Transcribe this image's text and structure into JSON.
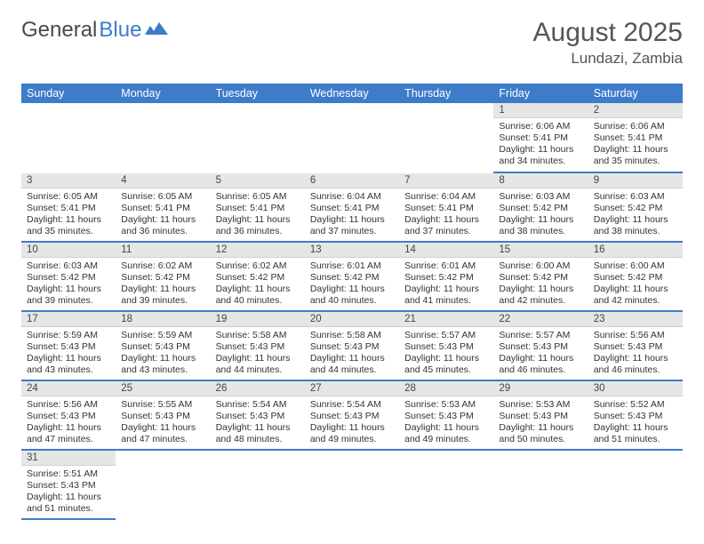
{
  "brand": {
    "part1": "General",
    "part2": "Blue"
  },
  "title": {
    "month": "August 2025",
    "location": "Lundazi, Zambia"
  },
  "colors": {
    "header_bg": "#3d7cc9",
    "header_fg": "#ffffff",
    "daynum_bg": "#e6e6e6",
    "row_border": "#3d7cc9",
    "text": "#333333"
  },
  "weekdays": [
    "Sunday",
    "Monday",
    "Tuesday",
    "Wednesday",
    "Thursday",
    "Friday",
    "Saturday"
  ],
  "weeks": [
    [
      {
        "n": "",
        "sr": "",
        "ss": "",
        "dl": ""
      },
      {
        "n": "",
        "sr": "",
        "ss": "",
        "dl": ""
      },
      {
        "n": "",
        "sr": "",
        "ss": "",
        "dl": ""
      },
      {
        "n": "",
        "sr": "",
        "ss": "",
        "dl": ""
      },
      {
        "n": "",
        "sr": "",
        "ss": "",
        "dl": ""
      },
      {
        "n": "1",
        "sr": "Sunrise: 6:06 AM",
        "ss": "Sunset: 5:41 PM",
        "dl": "Daylight: 11 hours and 34 minutes."
      },
      {
        "n": "2",
        "sr": "Sunrise: 6:06 AM",
        "ss": "Sunset: 5:41 PM",
        "dl": "Daylight: 11 hours and 35 minutes."
      }
    ],
    [
      {
        "n": "3",
        "sr": "Sunrise: 6:05 AM",
        "ss": "Sunset: 5:41 PM",
        "dl": "Daylight: 11 hours and 35 minutes."
      },
      {
        "n": "4",
        "sr": "Sunrise: 6:05 AM",
        "ss": "Sunset: 5:41 PM",
        "dl": "Daylight: 11 hours and 36 minutes."
      },
      {
        "n": "5",
        "sr": "Sunrise: 6:05 AM",
        "ss": "Sunset: 5:41 PM",
        "dl": "Daylight: 11 hours and 36 minutes."
      },
      {
        "n": "6",
        "sr": "Sunrise: 6:04 AM",
        "ss": "Sunset: 5:41 PM",
        "dl": "Daylight: 11 hours and 37 minutes."
      },
      {
        "n": "7",
        "sr": "Sunrise: 6:04 AM",
        "ss": "Sunset: 5:41 PM",
        "dl": "Daylight: 11 hours and 37 minutes."
      },
      {
        "n": "8",
        "sr": "Sunrise: 6:03 AM",
        "ss": "Sunset: 5:42 PM",
        "dl": "Daylight: 11 hours and 38 minutes."
      },
      {
        "n": "9",
        "sr": "Sunrise: 6:03 AM",
        "ss": "Sunset: 5:42 PM",
        "dl": "Daylight: 11 hours and 38 minutes."
      }
    ],
    [
      {
        "n": "10",
        "sr": "Sunrise: 6:03 AM",
        "ss": "Sunset: 5:42 PM",
        "dl": "Daylight: 11 hours and 39 minutes."
      },
      {
        "n": "11",
        "sr": "Sunrise: 6:02 AM",
        "ss": "Sunset: 5:42 PM",
        "dl": "Daylight: 11 hours and 39 minutes."
      },
      {
        "n": "12",
        "sr": "Sunrise: 6:02 AM",
        "ss": "Sunset: 5:42 PM",
        "dl": "Daylight: 11 hours and 40 minutes."
      },
      {
        "n": "13",
        "sr": "Sunrise: 6:01 AM",
        "ss": "Sunset: 5:42 PM",
        "dl": "Daylight: 11 hours and 40 minutes."
      },
      {
        "n": "14",
        "sr": "Sunrise: 6:01 AM",
        "ss": "Sunset: 5:42 PM",
        "dl": "Daylight: 11 hours and 41 minutes."
      },
      {
        "n": "15",
        "sr": "Sunrise: 6:00 AM",
        "ss": "Sunset: 5:42 PM",
        "dl": "Daylight: 11 hours and 42 minutes."
      },
      {
        "n": "16",
        "sr": "Sunrise: 6:00 AM",
        "ss": "Sunset: 5:42 PM",
        "dl": "Daylight: 11 hours and 42 minutes."
      }
    ],
    [
      {
        "n": "17",
        "sr": "Sunrise: 5:59 AM",
        "ss": "Sunset: 5:43 PM",
        "dl": "Daylight: 11 hours and 43 minutes."
      },
      {
        "n": "18",
        "sr": "Sunrise: 5:59 AM",
        "ss": "Sunset: 5:43 PM",
        "dl": "Daylight: 11 hours and 43 minutes."
      },
      {
        "n": "19",
        "sr": "Sunrise: 5:58 AM",
        "ss": "Sunset: 5:43 PM",
        "dl": "Daylight: 11 hours and 44 minutes."
      },
      {
        "n": "20",
        "sr": "Sunrise: 5:58 AM",
        "ss": "Sunset: 5:43 PM",
        "dl": "Daylight: 11 hours and 44 minutes."
      },
      {
        "n": "21",
        "sr": "Sunrise: 5:57 AM",
        "ss": "Sunset: 5:43 PM",
        "dl": "Daylight: 11 hours and 45 minutes."
      },
      {
        "n": "22",
        "sr": "Sunrise: 5:57 AM",
        "ss": "Sunset: 5:43 PM",
        "dl": "Daylight: 11 hours and 46 minutes."
      },
      {
        "n": "23",
        "sr": "Sunrise: 5:56 AM",
        "ss": "Sunset: 5:43 PM",
        "dl": "Daylight: 11 hours and 46 minutes."
      }
    ],
    [
      {
        "n": "24",
        "sr": "Sunrise: 5:56 AM",
        "ss": "Sunset: 5:43 PM",
        "dl": "Daylight: 11 hours and 47 minutes."
      },
      {
        "n": "25",
        "sr": "Sunrise: 5:55 AM",
        "ss": "Sunset: 5:43 PM",
        "dl": "Daylight: 11 hours and 47 minutes."
      },
      {
        "n": "26",
        "sr": "Sunrise: 5:54 AM",
        "ss": "Sunset: 5:43 PM",
        "dl": "Daylight: 11 hours and 48 minutes."
      },
      {
        "n": "27",
        "sr": "Sunrise: 5:54 AM",
        "ss": "Sunset: 5:43 PM",
        "dl": "Daylight: 11 hours and 49 minutes."
      },
      {
        "n": "28",
        "sr": "Sunrise: 5:53 AM",
        "ss": "Sunset: 5:43 PM",
        "dl": "Daylight: 11 hours and 49 minutes."
      },
      {
        "n": "29",
        "sr": "Sunrise: 5:53 AM",
        "ss": "Sunset: 5:43 PM",
        "dl": "Daylight: 11 hours and 50 minutes."
      },
      {
        "n": "30",
        "sr": "Sunrise: 5:52 AM",
        "ss": "Sunset: 5:43 PM",
        "dl": "Daylight: 11 hours and 51 minutes."
      }
    ],
    [
      {
        "n": "31",
        "sr": "Sunrise: 5:51 AM",
        "ss": "Sunset: 5:43 PM",
        "dl": "Daylight: 11 hours and 51 minutes."
      },
      {
        "n": "",
        "sr": "",
        "ss": "",
        "dl": ""
      },
      {
        "n": "",
        "sr": "",
        "ss": "",
        "dl": ""
      },
      {
        "n": "",
        "sr": "",
        "ss": "",
        "dl": ""
      },
      {
        "n": "",
        "sr": "",
        "ss": "",
        "dl": ""
      },
      {
        "n": "",
        "sr": "",
        "ss": "",
        "dl": ""
      },
      {
        "n": "",
        "sr": "",
        "ss": "",
        "dl": ""
      }
    ]
  ]
}
